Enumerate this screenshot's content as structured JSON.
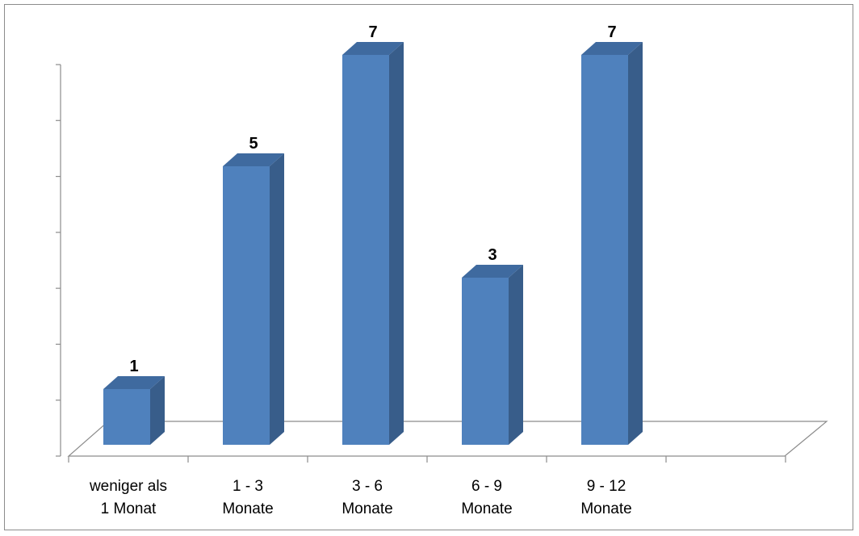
{
  "chart_data": {
    "type": "bar",
    "style": "3d-column",
    "categories": [
      [
        "weniger als",
        "1 Monat"
      ],
      [
        "1 - 3",
        "Monate"
      ],
      [
        "3 - 6",
        "Monate"
      ],
      [
        "6 - 9",
        "Monate"
      ],
      [
        "9 - 12",
        "Monate"
      ]
    ],
    "values": [
      1,
      5,
      7,
      3,
      7
    ],
    "data_labels": [
      "1",
      "5",
      "7",
      "3",
      "7"
    ],
    "ylim": [
      0,
      7
    ],
    "y_tick_count": 8,
    "grid": false,
    "legend": "none",
    "title": "",
    "xlabel": "",
    "ylabel": "",
    "colors": {
      "bar_front": "#4f81bd",
      "bar_side": "#385d8a",
      "bar_top": "#3f6a9f",
      "axis": "#8c8c8c",
      "frame": "#8c8c8c"
    }
  }
}
